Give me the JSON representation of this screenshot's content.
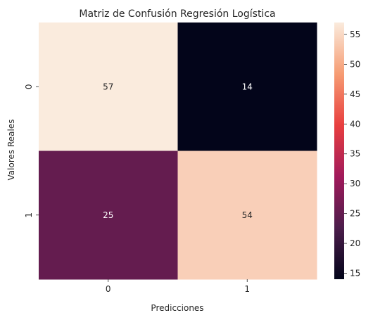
{
  "chart_data": {
    "type": "heatmap",
    "title": "Matriz de Confusión Regresión Logística",
    "xlabel": "Predicciones",
    "ylabel": "Valores Reales",
    "x_categories": [
      "0",
      "1"
    ],
    "y_categories": [
      "0",
      "1"
    ],
    "values": [
      [
        57,
        14
      ],
      [
        25,
        54
      ]
    ],
    "annotations": [
      "57",
      "14",
      "25",
      "54"
    ],
    "colorbar": {
      "range": [
        14,
        57
      ],
      "ticks": [
        "15",
        "20",
        "25",
        "30",
        "35",
        "40",
        "45",
        "50",
        "55"
      ],
      "colormap": "rocket",
      "stops": [
        "#03051a",
        "#4c1d4b",
        "#a11a5b",
        "#e83f3f",
        "#f69c73",
        "#faebdd"
      ]
    },
    "annotation_colors": {
      "on_dark": "#ffffff",
      "on_light": "#262626"
    }
  }
}
